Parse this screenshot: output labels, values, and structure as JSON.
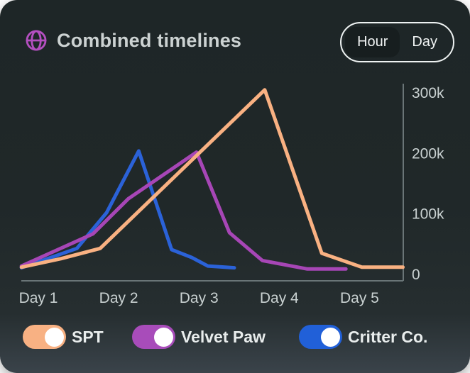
{
  "header": {
    "title": "Combined timelines",
    "icon": "globe-icon",
    "accent_color": "#b44fc0",
    "view_toggle": {
      "options": [
        "Hour",
        "Day"
      ],
      "selected": "Hour"
    }
  },
  "chart_data": {
    "type": "line",
    "title": "Combined timelines",
    "x_ticks": [
      {
        "label": "Day 1",
        "day": 1
      },
      {
        "label": "Day 2",
        "day": 2
      },
      {
        "label": "Day 3",
        "day": 3
      },
      {
        "label": "Day 4",
        "day": 4
      },
      {
        "label": "Day 5",
        "day": 5
      }
    ],
    "y_ticks": [
      {
        "label": "300k",
        "value_k": 300
      },
      {
        "label": "200k",
        "value_k": 200
      },
      {
        "label": "100k",
        "value_k": 100
      },
      {
        "label": "0",
        "value_k": 0
      }
    ],
    "y_unit": "k",
    "ylim_k": [
      0,
      315
    ],
    "grid": false,
    "legend_position": "bottom",
    "axis_color": "#6a7577",
    "tick_text_color": "#c9d1d1",
    "series": [
      {
        "name": "SPT",
        "color": "#f9b182",
        "points_day_valuek": [
          [
            0.79,
            12
          ],
          [
            1.28,
            26
          ],
          [
            1.77,
            43
          ],
          [
            3.82,
            305
          ],
          [
            4.53,
            35
          ],
          [
            5.03,
            12
          ],
          [
            5.54,
            12
          ]
        ]
      },
      {
        "name": "Velvet Paw",
        "color": "#a746b6",
        "points_day_valuek": [
          [
            0.79,
            14
          ],
          [
            1.68,
            67
          ],
          [
            2.12,
            125
          ],
          [
            2.97,
            202
          ],
          [
            3.38,
            69
          ],
          [
            3.79,
            23
          ],
          [
            4.35,
            9
          ],
          [
            4.83,
            9
          ]
        ]
      },
      {
        "name": "Critter Co.",
        "color": "#2b62d8",
        "points_day_valuek": [
          [
            0.79,
            11
          ],
          [
            1.48,
            43
          ],
          [
            1.85,
            102
          ],
          [
            2.25,
            204
          ],
          [
            2.66,
            41
          ],
          [
            2.91,
            28
          ],
          [
            3.11,
            14
          ],
          [
            3.44,
            11
          ]
        ]
      }
    ]
  },
  "legend": {
    "items": [
      {
        "label": "SPT",
        "color": "#f8b183",
        "enabled": true
      },
      {
        "label": "Velvet Paw",
        "color": "#a84cba",
        "enabled": true
      },
      {
        "label": "Critter Co.",
        "color": "#2160d8",
        "enabled": true
      }
    ]
  }
}
